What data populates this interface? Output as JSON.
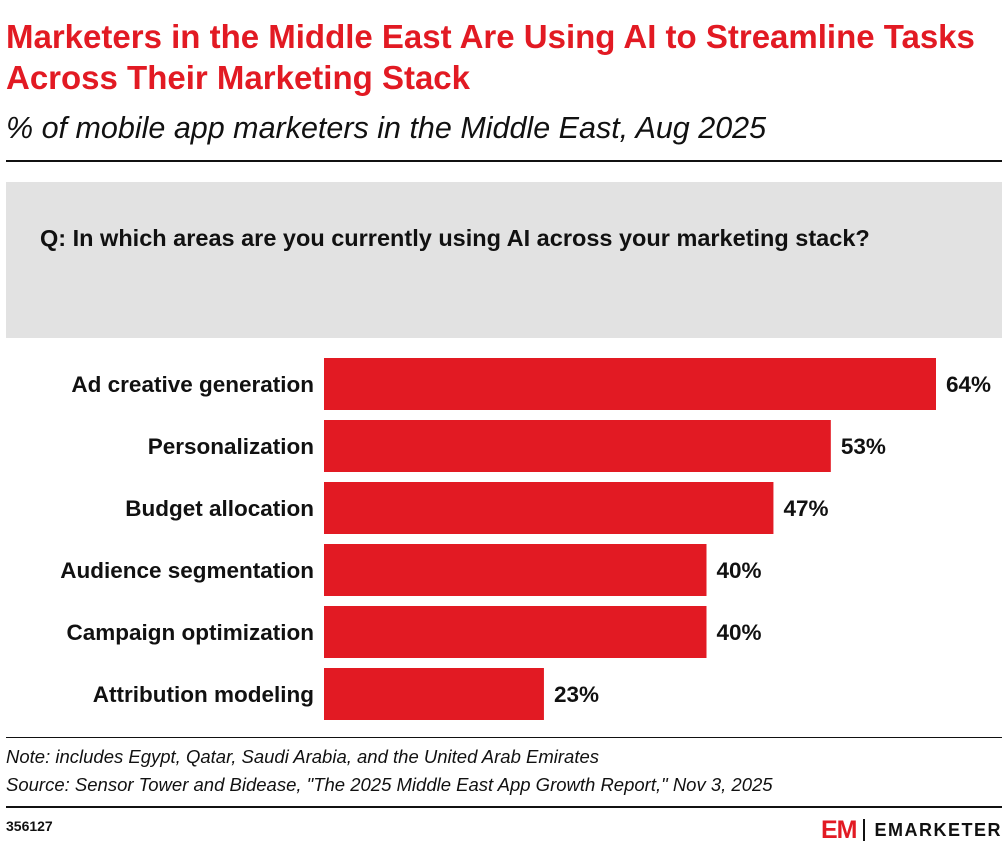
{
  "header": {
    "title": "Marketers in the Middle East Are Using AI to Streamline Tasks Across Their Marketing Stack",
    "subtitle": "% of mobile app marketers in the Middle East, Aug 2025"
  },
  "question": "Q: In which areas are you currently using AI across your marketing stack?",
  "chart_data": {
    "type": "bar",
    "orientation": "horizontal",
    "categories": [
      "Ad creative generation",
      "Personalization",
      "Budget allocation",
      "Audience segmentation",
      "Campaign optimization",
      "Attribution modeling"
    ],
    "values": [
      64,
      53,
      47,
      40,
      40,
      23
    ],
    "value_labels": [
      "64%",
      "53%",
      "47%",
      "40%",
      "40%",
      "23%"
    ],
    "xlim": [
      0,
      64
    ],
    "grid": false,
    "color": "#e21a23"
  },
  "footer": {
    "note": "Note: includes Egypt, Qatar, Saudi Arabia, and the United Arab Emirates",
    "source": "Source: Sensor Tower and Bidease, \"The 2025 Middle East App Growth Report,\" Nov 3, 2025",
    "chart_id": "356127",
    "logo_mark": "EM",
    "logo_text": "EMARKETER"
  },
  "colors": {
    "accent": "#e21a23",
    "question_bg": "#e2e2e2",
    "text": "#111111"
  }
}
